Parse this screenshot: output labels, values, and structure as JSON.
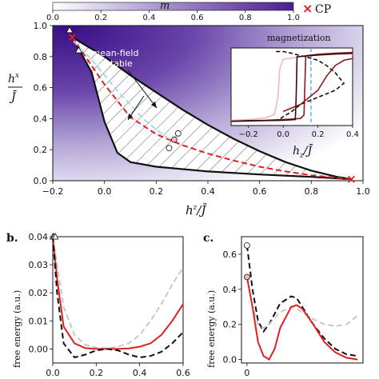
{
  "colorbar": {
    "label": "m",
    "ticks": [
      "0.0",
      "0.2",
      "0.4",
      "0.6",
      "0.8",
      "1.0"
    ],
    "colors": [
      "#ffffff",
      "#4b1d91"
    ]
  },
  "legend": {
    "marker": "×",
    "label": "CP",
    "color": "#e02020"
  },
  "panel_b_label": "b.",
  "panel_c_label": "c.",
  "colors": {
    "red": "#e02020",
    "black": "#111111",
    "gray": "#c8c8c8",
    "light_blue": "#a8d8ef",
    "pink": "#f0b8c0",
    "brown": "#8b1a1a",
    "dark_brown": "#3a0a0a"
  },
  "chart_data": [
    {
      "id": "a",
      "type": "line",
      "xlabel": "hz/J̄",
      "ylabel": "hx/J̄",
      "xlim": [
        -0.2,
        1.0
      ],
      "ylim": [
        0.0,
        1.0
      ],
      "xticks": [
        "−0.2",
        "0.0",
        "0.2",
        "0.4",
        "0.6",
        "0.8",
        "1.0"
      ],
      "yticks": [
        "0.0",
        "0.2",
        "0.4",
        "0.6",
        "0.8",
        "1.0"
      ],
      "annotation": "mean-field\nbistable",
      "critical_points": [
        [
          -0.125,
          0.925
        ],
        [
          0.955,
          0.01
        ]
      ],
      "series": [
        {
          "role": "boundary_upper",
          "color": "black",
          "x": [
            -0.125,
            0.0,
            0.1,
            0.2,
            0.3,
            0.4,
            0.5,
            0.6,
            0.7,
            0.8,
            0.9,
            0.955
          ],
          "y": [
            0.925,
            0.8,
            0.68,
            0.57,
            0.46,
            0.36,
            0.27,
            0.19,
            0.12,
            0.065,
            0.025,
            0.01
          ]
        },
        {
          "role": "boundary_lower",
          "color": "black",
          "x": [
            -0.125,
            -0.05,
            0.0,
            0.05,
            0.1,
            0.2,
            0.4,
            0.6,
            0.8,
            0.955
          ],
          "y": [
            0.925,
            0.7,
            0.38,
            0.18,
            0.12,
            0.09,
            0.06,
            0.04,
            0.025,
            0.01
          ]
        },
        {
          "role": "dashed_red",
          "color": "red",
          "dash": true,
          "x": [
            -0.125,
            0.0,
            0.1,
            0.2,
            0.3,
            0.4,
            0.5,
            0.6,
            0.7,
            0.8,
            0.955
          ],
          "y": [
            0.925,
            0.62,
            0.41,
            0.3,
            0.23,
            0.175,
            0.13,
            0.09,
            0.06,
            0.035,
            0.01
          ]
        },
        {
          "role": "dashed_light_blue",
          "color": "light_blue",
          "dash": true,
          "x": [
            -0.12,
            -0.05,
            0.0,
            0.05,
            0.1,
            0.15,
            0.2,
            0.25
          ],
          "y": [
            0.9,
            0.78,
            0.68,
            0.58,
            0.49,
            0.4,
            0.33,
            0.27
          ]
        }
      ],
      "markers": [
        {
          "shape": "triangle",
          "color": "white",
          "x": -0.135,
          "y": 0.97
        },
        {
          "shape": "triangle",
          "color": "white",
          "x": -0.1,
          "y": 0.84
        },
        {
          "shape": "circle",
          "color": "white",
          "x": 0.25,
          "y": 0.21
        },
        {
          "shape": "circle",
          "color": "pink",
          "x": 0.27,
          "y": 0.265
        },
        {
          "shape": "circle",
          "color": "white",
          "x": 0.285,
          "y": 0.305
        }
      ]
    },
    {
      "id": "a_inset",
      "type": "line",
      "title": "magnetization",
      "xlabel": "hz/J̄",
      "xlim": [
        -0.3,
        0.4
      ],
      "ylim": [
        -1.1,
        1.1
      ],
      "xticks": [
        "−0.2",
        "0.0",
        "0.2",
        "0.4"
      ],
      "vline": 0.16,
      "series": [
        {
          "color": "black",
          "dash": true,
          "x": [
            -0.05,
            -0.02,
            0.0,
            0.05,
            0.1,
            0.2,
            0.3,
            0.35,
            0.3,
            0.25,
            0.2,
            0.15,
            0.1,
            0.05,
            0.0,
            -0.02,
            -0.05
          ],
          "y": [
            -0.95,
            -0.92,
            -0.85,
            -0.7,
            -0.5,
            -0.3,
            -0.1,
            0.1,
            0.4,
            0.6,
            0.75,
            0.82,
            0.88,
            0.95,
            1.0,
            1.0,
            1.0
          ]
        },
        {
          "color": "pink",
          "x": [
            -0.3,
            -0.2,
            -0.1,
            -0.05,
            -0.03,
            -0.02,
            0.0,
            0.1,
            0.2,
            0.3,
            0.4
          ],
          "y": [
            -0.95,
            -0.93,
            -0.88,
            -0.78,
            -0.3,
            0.5,
            0.78,
            0.85,
            0.9,
            0.92,
            0.93
          ]
        },
        {
          "color": "brown",
          "x": [
            -0.3,
            -0.2,
            -0.1,
            0.0,
            0.1,
            0.12,
            0.13,
            0.2,
            0.3,
            0.4
          ],
          "y": [
            -0.98,
            -0.96,
            -0.95,
            -0.93,
            -0.9,
            -0.8,
            0.88,
            0.92,
            0.95,
            0.97
          ]
        },
        {
          "color": "dark_brown",
          "x": [
            -0.3,
            -0.2,
            -0.1,
            0.0,
            0.07,
            0.075,
            0.08,
            0.2,
            0.3,
            0.4
          ],
          "y": [
            -0.98,
            -0.97,
            -0.96,
            -0.95,
            -0.93,
            -0.3,
            0.85,
            0.9,
            0.93,
            0.95
          ]
        },
        {
          "color": "brown",
          "x": [
            0.0,
            0.1,
            0.2,
            0.25,
            0.3,
            0.35,
            0.4
          ],
          "y": [
            -0.7,
            -0.5,
            -0.1,
            0.3,
            0.6,
            0.75,
            0.8
          ]
        }
      ]
    },
    {
      "id": "b",
      "type": "line",
      "ylabel": "free energy (a.u.)",
      "xlim": [
        0.0,
        0.6
      ],
      "ylim": [
        -0.005,
        0.04
      ],
      "xticks": [
        "0.0",
        "0.2",
        "0.4",
        "0.6"
      ],
      "yticks": [
        "0.00",
        "0.01",
        "0.02",
        "0.03",
        "0.04"
      ],
      "series": [
        {
          "color": "gray",
          "dash": true,
          "x": [
            0.0,
            0.02,
            0.05,
            0.1,
            0.15,
            0.2,
            0.25,
            0.3,
            0.35,
            0.4,
            0.45,
            0.5,
            0.55,
            0.6
          ],
          "y": [
            0.04,
            0.03,
            0.015,
            0.005,
            0.0015,
            0.0005,
            0.0002,
            0.0008,
            0.002,
            0.005,
            0.01,
            0.016,
            0.023,
            0.029
          ]
        },
        {
          "color": "red",
          "x": [
            0.0,
            0.02,
            0.05,
            0.1,
            0.15,
            0.2,
            0.25,
            0.3,
            0.35,
            0.4,
            0.45,
            0.5,
            0.55,
            0.6
          ],
          "y": [
            0.04,
            0.025,
            0.008,
            0.002,
            0.0003,
            0.0,
            0.0,
            0.0,
            0.0002,
            0.0008,
            0.002,
            0.005,
            0.01,
            0.016
          ]
        },
        {
          "color": "black",
          "dash": true,
          "x": [
            0.0,
            0.02,
            0.05,
            0.1,
            0.15,
            0.2,
            0.25,
            0.3,
            0.35,
            0.4,
            0.45,
            0.5,
            0.55,
            0.6
          ],
          "y": [
            0.04,
            0.02,
            0.002,
            -0.003,
            -0.002,
            -0.0005,
            0.0,
            -0.0005,
            -0.002,
            -0.003,
            -0.0025,
            -0.001,
            0.002,
            0.006
          ]
        }
      ],
      "markers": [
        {
          "color": "white",
          "x": 0.0,
          "y": 0.04
        },
        {
          "color": "pink",
          "x": 0.005,
          "y": 0.04
        },
        {
          "color": "white",
          "x": 0.012,
          "y": 0.04
        }
      ]
    },
    {
      "id": "c",
      "type": "line",
      "ylabel": "free energy (a.u.)",
      "xlim": [
        -0.05,
        1.05
      ],
      "ylim": [
        -0.02,
        0.7
      ],
      "xticks": [
        "0"
      ],
      "yticks": [
        "0.0",
        "0.2",
        "0.4",
        "0.6"
      ],
      "series": [
        {
          "color": "black",
          "dash": true,
          "x": [
            0.0,
            0.05,
            0.1,
            0.15,
            0.2,
            0.3,
            0.4,
            0.45,
            0.5,
            0.6,
            0.7,
            0.8,
            0.9,
            1.0
          ],
          "y": [
            0.65,
            0.4,
            0.22,
            0.16,
            0.2,
            0.32,
            0.36,
            0.35,
            0.3,
            0.2,
            0.12,
            0.06,
            0.03,
            0.02
          ]
        },
        {
          "color": "gray",
          "dash": true,
          "x": [
            0.0,
            0.05,
            0.1,
            0.15,
            0.2,
            0.3,
            0.4,
            0.45,
            0.5,
            0.6,
            0.7,
            0.8,
            0.9,
            1.0
          ],
          "y": [
            0.47,
            0.3,
            0.2,
            0.18,
            0.2,
            0.27,
            0.3,
            0.29,
            0.27,
            0.23,
            0.2,
            0.19,
            0.2,
            0.25
          ]
        },
        {
          "color": "red",
          "x": [
            0.0,
            0.05,
            0.1,
            0.15,
            0.2,
            0.25,
            0.3,
            0.4,
            0.45,
            0.5,
            0.6,
            0.7,
            0.8,
            0.9,
            1.0
          ],
          "y": [
            0.47,
            0.3,
            0.1,
            0.02,
            0.0,
            0.06,
            0.18,
            0.3,
            0.31,
            0.29,
            0.2,
            0.1,
            0.04,
            0.01,
            0.0
          ]
        }
      ],
      "markers": [
        {
          "color": "white",
          "x": 0.0,
          "y": 0.65
        },
        {
          "color": "pink",
          "x": 0.0,
          "y": 0.47
        }
      ]
    }
  ]
}
